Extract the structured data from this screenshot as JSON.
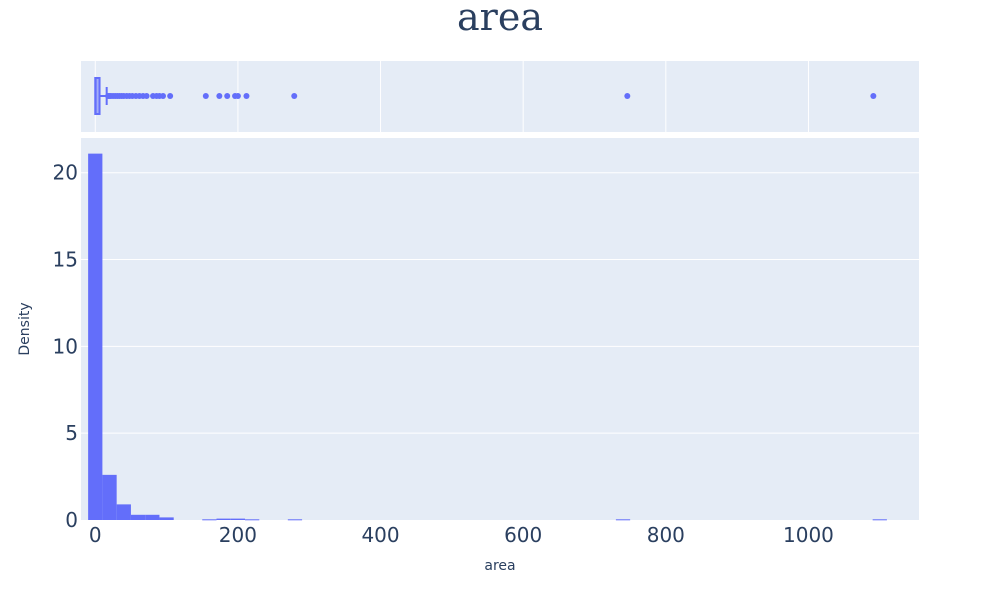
{
  "colors": {
    "plot_bg": "#E5ECF6",
    "grid": "#ffffff",
    "bar": "#636EFA",
    "text": "#2a3f5f"
  },
  "chart_data": {
    "type": "histogram",
    "title": "area",
    "xlabel": "area",
    "ylabel": "Density",
    "xlim": [
      -20,
      1155
    ],
    "ylim": [
      0,
      22
    ],
    "x_ticks": [
      "0",
      "200",
      "400",
      "600",
      "800",
      "1000"
    ],
    "y_ticks": [
      "0",
      "5",
      "10",
      "15",
      "20"
    ],
    "grid": true,
    "bins": [
      {
        "x0": -10,
        "x1": 10,
        "density": 21.1
      },
      {
        "x0": 10,
        "x1": 30,
        "density": 2.6
      },
      {
        "x0": 30,
        "x1": 50,
        "density": 0.9
      },
      {
        "x0": 50,
        "x1": 70,
        "density": 0.3
      },
      {
        "x0": 70,
        "x1": 90,
        "density": 0.3
      },
      {
        "x0": 90,
        "x1": 110,
        "density": 0.15
      },
      {
        "x0": 150,
        "x1": 170,
        "density": 0.04
      },
      {
        "x0": 170,
        "x1": 190,
        "density": 0.08
      },
      {
        "x0": 190,
        "x1": 210,
        "density": 0.08
      },
      {
        "x0": 210,
        "x1": 230,
        "density": 0.04
      },
      {
        "x0": 270,
        "x1": 290,
        "density": 0.04
      },
      {
        "x0": 730,
        "x1": 750,
        "density": 0.04
      },
      {
        "x0": 1090,
        "x1": 1110,
        "density": 0.04
      }
    ],
    "box": {
      "q1": 0,
      "median": 0.5,
      "q3": 6,
      "whisker_low": 0,
      "whisker_high": 16,
      "outliers": [
        18,
        20,
        22,
        25,
        28,
        31,
        34,
        37,
        40,
        44,
        48,
        52,
        57,
        62,
        67,
        72,
        81,
        86,
        90,
        95,
        105,
        155,
        174,
        185,
        196,
        200,
        212,
        279,
        746,
        1091
      ]
    }
  }
}
